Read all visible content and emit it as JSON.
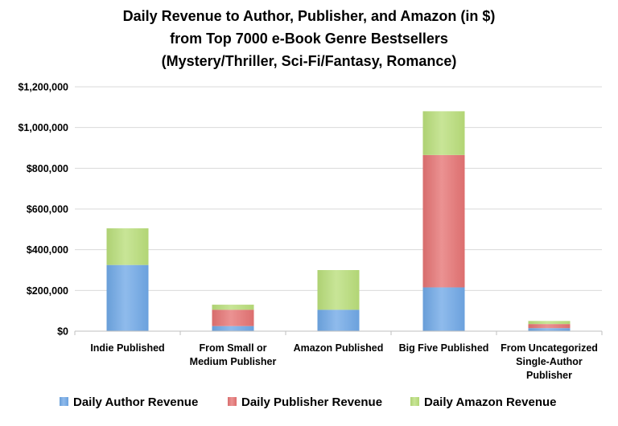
{
  "chart_data": {
    "type": "bar",
    "stacked": true,
    "title": [
      "Daily Revenue to Author, Publisher, and Amazon (in $)",
      "from Top 7000 e-Book Genre Bestsellers",
      "(Mystery/Thriller, Sci-Fi/Fantasy, Romance)"
    ],
    "categories": [
      [
        "Indie Published"
      ],
      [
        "From Small or",
        "Medium Publisher"
      ],
      [
        "Amazon Published"
      ],
      [
        "Big Five Published"
      ],
      [
        "From Uncategorized",
        "Single-Author",
        "Publisher"
      ]
    ],
    "ylim": [
      0,
      1200000
    ],
    "y_ticks": [
      0,
      200000,
      400000,
      600000,
      800000,
      1000000,
      1200000
    ],
    "y_tick_labels": [
      "$0",
      "$200,000",
      "$400,000",
      "$600,000",
      "$800,000",
      "$1,000,000",
      "$1,200,000"
    ],
    "grid": true,
    "legend_position": "bottom",
    "series": [
      {
        "name": "Daily Author Revenue",
        "values": [
          325000,
          25000,
          105000,
          215000,
          15000
        ],
        "color": "#6fa8e6"
      },
      {
        "name": "Daily Publisher Revenue",
        "values": [
          0,
          80000,
          0,
          650000,
          20000
        ],
        "color": "#e57373"
      },
      {
        "name": "Daily Amazon Revenue",
        "values": [
          180000,
          25000,
          195000,
          215000,
          15000
        ],
        "color": "#b9de7a"
      }
    ]
  }
}
